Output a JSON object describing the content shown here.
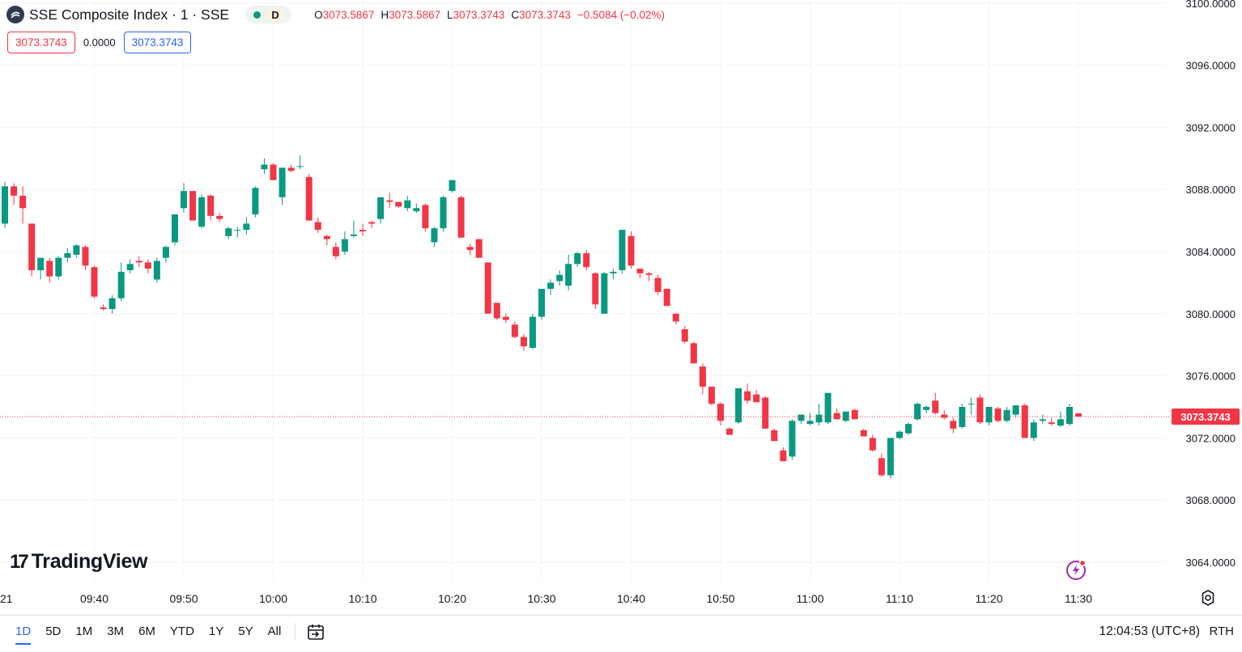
{
  "colors": {
    "up": "#089981",
    "down": "#f23645",
    "grid": "#f0f3fa",
    "accent": "#2962ff",
    "text": "#131722",
    "last_price_line": "#f23645"
  },
  "legend": {
    "symbol": "SSE Composite Index · 1 · SSE",
    "logo_icon": "sse-logo-icon",
    "delay_badge": "D",
    "open_key": "O",
    "open": "3073.5867",
    "high_key": "H",
    "high": "3073.5867",
    "low_key": "L",
    "low": "3073.3743",
    "close_key": "C",
    "close": "3073.3743",
    "change": "−0.5084 (−0.02%)"
  },
  "quote": {
    "bid": "3073.3743",
    "spread": "0.0000",
    "ask": "3073.3743"
  },
  "watermark": {
    "logo": "17",
    "text": "TradingView"
  },
  "chart_data": {
    "type": "candlestick",
    "y_ticks": [
      "3100.0000",
      "3096.0000",
      "3092.0000",
      "3088.0000",
      "3084.0000",
      "3080.0000",
      "3076.0000",
      "3072.0000",
      "3068.0000",
      "3064.0000"
    ],
    "ylim": [
      3062.8,
      3100.2
    ],
    "last_price": 3073.3743,
    "last_price_label": "3073.3743",
    "x_first_label": "21",
    "x_ticks": [
      "09:40",
      "09:50",
      "10:00",
      "10:10",
      "10:20",
      "10:30",
      "10:40",
      "10:50",
      "11:00",
      "11:10",
      "11:20",
      "11:30"
    ],
    "x_tick_minutes": [
      10,
      20,
      30,
      40,
      50,
      60,
      70,
      80,
      90,
      100,
      110,
      120
    ],
    "grid": true,
    "candles_ohlc": [
      [
        3085.8,
        3088.5,
        3085.5,
        3088.2
      ],
      [
        3088.2,
        3088.4,
        3087.0,
        3087.6
      ],
      [
        3087.6,
        3088.2,
        3085.8,
        3086.8
      ],
      [
        3085.8,
        3085.8,
        3082.4,
        3082.8
      ],
      [
        3082.8,
        3083.5,
        3082.2,
        3083.6
      ],
      [
        3083.4,
        3083.6,
        3082.0,
        3082.4
      ],
      [
        3082.4,
        3083.7,
        3082.2,
        3083.6
      ],
      [
        3083.6,
        3084.2,
        3083.3,
        3083.9
      ],
      [
        3083.8,
        3084.5,
        3083.6,
        3084.4
      ],
      [
        3084.3,
        3084.4,
        3082.8,
        3083.1
      ],
      [
        3083.0,
        3083.1,
        3081.0,
        3081.1
      ],
      [
        3080.4,
        3080.6,
        3080.2,
        3080.3
      ],
      [
        3080.3,
        3081.2,
        3080.0,
        3081.0
      ],
      [
        3081.0,
        3083.3,
        3080.8,
        3082.7
      ],
      [
        3082.8,
        3083.5,
        3082.6,
        3083.2
      ],
      [
        3083.4,
        3083.7,
        3083.0,
        3083.3
      ],
      [
        3083.3,
        3083.5,
        3082.6,
        3082.9
      ],
      [
        3082.2,
        3083.6,
        3082.0,
        3083.4
      ],
      [
        3083.6,
        3084.4,
        3083.3,
        3084.3
      ],
      [
        3084.6,
        3086.4,
        3084.4,
        3086.4
      ],
      [
        3086.8,
        3088.4,
        3086.5,
        3087.9
      ],
      [
        3087.9,
        3087.9,
        3086.4,
        3086.0
      ],
      [
        3085.6,
        3087.7,
        3085.5,
        3087.5
      ],
      [
        3087.6,
        3087.7,
        3086.0,
        3086.3
      ],
      [
        3086.3,
        3086.5,
        3085.9,
        3086.1
      ],
      [
        3085.0,
        3085.6,
        3084.8,
        3085.5
      ],
      [
        3085.4,
        3085.6,
        3084.9,
        3085.4
      ],
      [
        3085.4,
        3086.2,
        3085.1,
        3085.8
      ],
      [
        3086.4,
        3088.2,
        3086.2,
        3088.1
      ],
      [
        3089.3,
        3090.0,
        3089.0,
        3089.6
      ],
      [
        3089.6,
        3089.7,
        3088.7,
        3088.6
      ],
      [
        3087.5,
        3089.4,
        3087.0,
        3089.4
      ],
      [
        3089.4,
        3089.6,
        3089.1,
        3089.2
      ],
      [
        3089.5,
        3090.2,
        3089.3,
        3089.5
      ],
      [
        3088.8,
        3089.0,
        3086.0,
        3086.0
      ],
      [
        3085.9,
        3086.2,
        3085.2,
        3085.4
      ],
      [
        3085.0,
        3085.1,
        3084.4,
        3084.8
      ],
      [
        3084.3,
        3084.6,
        3083.5,
        3083.7
      ],
      [
        3084.0,
        3085.3,
        3083.8,
        3084.8
      ],
      [
        3085.0,
        3086.0,
        3084.9,
        3085.1
      ],
      [
        3085.4,
        3085.8,
        3085.0,
        3085.3
      ],
      [
        3085.9,
        3086.0,
        3085.5,
        3085.8
      ],
      [
        3086.1,
        3087.1,
        3085.8,
        3087.5
      ],
      [
        3087.3,
        3087.8,
        3086.8,
        3087.2
      ],
      [
        3087.2,
        3087.2,
        3086.8,
        3086.9
      ],
      [
        3086.8,
        3087.6,
        3086.6,
        3087.3
      ],
      [
        3086.6,
        3087.1,
        3086.5,
        3086.8
      ],
      [
        3087.0,
        3087.1,
        3085.3,
        3085.5
      ],
      [
        3084.6,
        3085.6,
        3084.3,
        3085.5
      ],
      [
        3085.5,
        3087.6,
        3085.3,
        3087.5
      ],
      [
        3087.9,
        3088.6,
        3087.8,
        3088.6
      ],
      [
        3087.5,
        3087.6,
        3084.9,
        3084.9
      ],
      [
        3084.3,
        3084.5,
        3083.8,
        3084.1
      ],
      [
        3084.8,
        3084.8,
        3083.6,
        3083.6
      ],
      [
        3083.3,
        3083.3,
        3080.2,
        3080.0
      ],
      [
        3080.7,
        3080.7,
        3079.6,
        3079.7
      ],
      [
        3079.8,
        3080.0,
        3079.4,
        3079.6
      ],
      [
        3079.3,
        3079.5,
        3078.4,
        3078.5
      ],
      [
        3078.5,
        3078.7,
        3077.6,
        3077.9
      ],
      [
        3077.8,
        3080.0,
        3077.7,
        3079.8
      ],
      [
        3079.8,
        3081.6,
        3079.6,
        3081.6
      ],
      [
        3081.6,
        3082.2,
        3081.2,
        3082.0
      ],
      [
        3082.1,
        3082.8,
        3081.8,
        3082.5
      ],
      [
        3081.8,
        3083.8,
        3081.5,
        3083.2
      ],
      [
        3083.2,
        3084.0,
        3083.0,
        3083.9
      ],
      [
        3083.9,
        3084.1,
        3082.8,
        3083.0
      ],
      [
        3082.6,
        3082.7,
        3080.3,
        3080.6
      ],
      [
        3080.0,
        3082.7,
        3080.0,
        3082.6
      ],
      [
        3082.6,
        3082.9,
        3082.2,
        3082.7
      ],
      [
        3082.8,
        3085.4,
        3082.6,
        3085.4
      ],
      [
        3085.0,
        3085.3,
        3082.9,
        3083.1
      ],
      [
        3082.9,
        3082.9,
        3082.3,
        3082.6
      ],
      [
        3082.6,
        3082.7,
        3082.1,
        3082.5
      ],
      [
        3082.3,
        3082.5,
        3081.2,
        3081.4
      ],
      [
        3081.6,
        3081.6,
        3080.5,
        3080.5
      ],
      [
        3080.0,
        3080.0,
        3079.3,
        3079.5
      ],
      [
        3079.0,
        3079.2,
        3078.1,
        3078.2
      ],
      [
        3078.1,
        3078.2,
        3076.9,
        3076.8
      ],
      [
        3076.6,
        3076.8,
        3074.8,
        3075.3
      ],
      [
        3075.3,
        3075.3,
        3074.1,
        3074.2
      ],
      [
        3074.2,
        3074.3,
        3072.8,
        3073.1
      ],
      [
        3072.6,
        3072.7,
        3072.3,
        3072.2
      ],
      [
        3073.0,
        3075.2,
        3072.9,
        3075.2
      ],
      [
        3075.0,
        3075.5,
        3074.2,
        3074.4
      ],
      [
        3074.8,
        3075.1,
        3074.3,
        3074.3
      ],
      [
        3074.6,
        3074.7,
        3072.7,
        3072.6
      ],
      [
        3072.5,
        3072.6,
        3072.1,
        3071.8
      ],
      [
        3071.2,
        3071.4,
        3070.6,
        3070.5
      ],
      [
        3070.8,
        3073.2,
        3070.6,
        3073.1
      ],
      [
        3073.1,
        3073.4,
        3072.9,
        3073.5
      ],
      [
        3072.9,
        3073.6,
        3072.8,
        3073.1
      ],
      [
        3073.0,
        3074.2,
        3072.8,
        3073.5
      ],
      [
        3073.0,
        3074.9,
        3072.9,
        3074.9
      ],
      [
        3073.6,
        3073.9,
        3073.2,
        3073.2
      ],
      [
        3073.1,
        3073.6,
        3073.0,
        3073.7
      ],
      [
        3073.8,
        3073.9,
        3073.3,
        3073.2
      ],
      [
        3072.5,
        3072.6,
        3072.1,
        3072.1
      ],
      [
        3072.0,
        3072.2,
        3071.1,
        3071.2
      ],
      [
        3070.7,
        3071.0,
        3069.5,
        3069.6
      ],
      [
        3069.6,
        3072.0,
        3069.4,
        3072.0
      ],
      [
        3072.0,
        3072.5,
        3071.9,
        3072.4
      ],
      [
        3072.3,
        3073.0,
        3072.2,
        3072.9
      ],
      [
        3073.2,
        3074.3,
        3073.1,
        3074.2
      ],
      [
        3073.8,
        3074.1,
        3073.6,
        3074.0
      ],
      [
        3074.4,
        3074.9,
        3073.5,
        3073.6
      ],
      [
        3073.5,
        3073.8,
        3073.2,
        3073.3
      ],
      [
        3073.1,
        3073.3,
        3072.3,
        3072.6
      ],
      [
        3072.7,
        3074.2,
        3072.6,
        3074.0
      ],
      [
        3074.2,
        3074.6,
        3073.5,
        3074.2
      ],
      [
        3074.6,
        3074.8,
        3072.9,
        3073.0
      ],
      [
        3073.0,
        3074.0,
        3072.8,
        3074.0
      ],
      [
        3073.9,
        3074.0,
        3073.0,
        3073.1
      ],
      [
        3073.1,
        3074.0,
        3073.0,
        3073.8
      ],
      [
        3073.5,
        3074.1,
        3073.3,
        3074.1
      ],
      [
        3074.1,
        3074.2,
        3072.0,
        3072.0
      ],
      [
        3072.0,
        3073.2,
        3071.8,
        3073.0
      ],
      [
        3073.1,
        3073.5,
        3072.9,
        3073.2
      ],
      [
        3073.0,
        3073.3,
        3072.8,
        3072.9
      ],
      [
        3072.8,
        3073.7,
        3072.7,
        3073.2
      ],
      [
        3072.9,
        3074.2,
        3072.8,
        3074.0
      ],
      [
        3073.5867,
        3073.5867,
        3073.3743,
        3073.3743
      ]
    ]
  },
  "bottom_bar": {
    "ranges": [
      "1D",
      "5D",
      "1M",
      "3M",
      "6M",
      "YTD",
      "1Y",
      "5Y",
      "All"
    ],
    "active_range": "1D",
    "goto_icon": "calendar-goto-icon",
    "clock": "12:04:53 (UTC+8)",
    "session": "RTH"
  }
}
